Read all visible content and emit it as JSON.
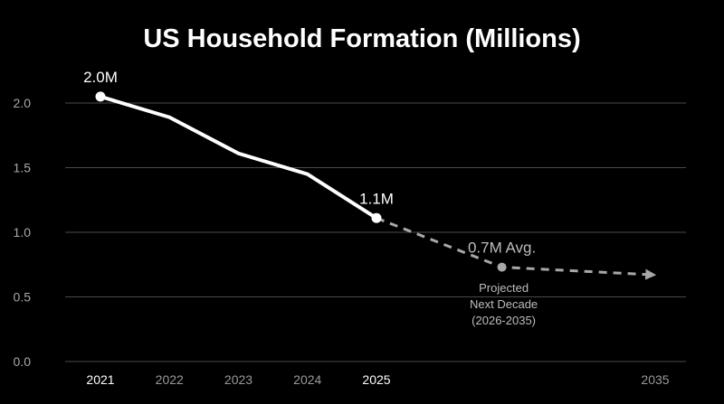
{
  "chart_data": {
    "type": "line",
    "title": "US Household Formation (Millions)",
    "xlabel": "",
    "ylabel": "",
    "ylim": [
      0,
      2.0
    ],
    "yticks": [
      "0.0",
      "0.5",
      "1.0",
      "1.5",
      "2.0"
    ],
    "xticks": [
      {
        "label": "2021",
        "year": 2021,
        "highlight": true
      },
      {
        "label": "2022",
        "year": 2022,
        "highlight": false
      },
      {
        "label": "2023",
        "year": 2023,
        "highlight": false
      },
      {
        "label": "2024",
        "year": 2024,
        "highlight": false
      },
      {
        "label": "2025",
        "year": 2025,
        "highlight": true
      },
      {
        "label": "2035",
        "year": 2035,
        "highlight": false
      }
    ],
    "grid": true,
    "series": [
      {
        "name": "",
        "style": "solid",
        "color": "#ffffff",
        "points": [
          {
            "x": 2021,
            "y": 2.05
          },
          {
            "x": 2022,
            "y": 1.89
          },
          {
            "x": 2023,
            "y": 1.61
          },
          {
            "x": 2024,
            "y": 1.45
          },
          {
            "x": 2025,
            "y": 1.11
          }
        ]
      },
      {
        "name": "",
        "style": "dashed",
        "color": "#a8a8a8",
        "points": [
          {
            "x": 2025,
            "y": 1.11
          },
          {
            "x": 2029.5,
            "y": 0.73
          },
          {
            "x": 2035,
            "y": 0.67
          }
        ]
      }
    ],
    "annotations": [
      {
        "text": "2.0M",
        "x": 2021,
        "y": 2.05,
        "style": "main"
      },
      {
        "text": "1.1M",
        "x": 2025,
        "y": 1.11,
        "style": "main"
      },
      {
        "text": "0.7M Avg.",
        "x": 2029.5,
        "y": 0.73,
        "style": "proj"
      }
    ],
    "note": [
      "Projected",
      "Next Decade",
      "(2026-2035)"
    ],
    "colors": {
      "background": "#000000",
      "grid": "#4a4a4a",
      "actual": "#ffffff",
      "projected": "#a8a8a8"
    }
  }
}
